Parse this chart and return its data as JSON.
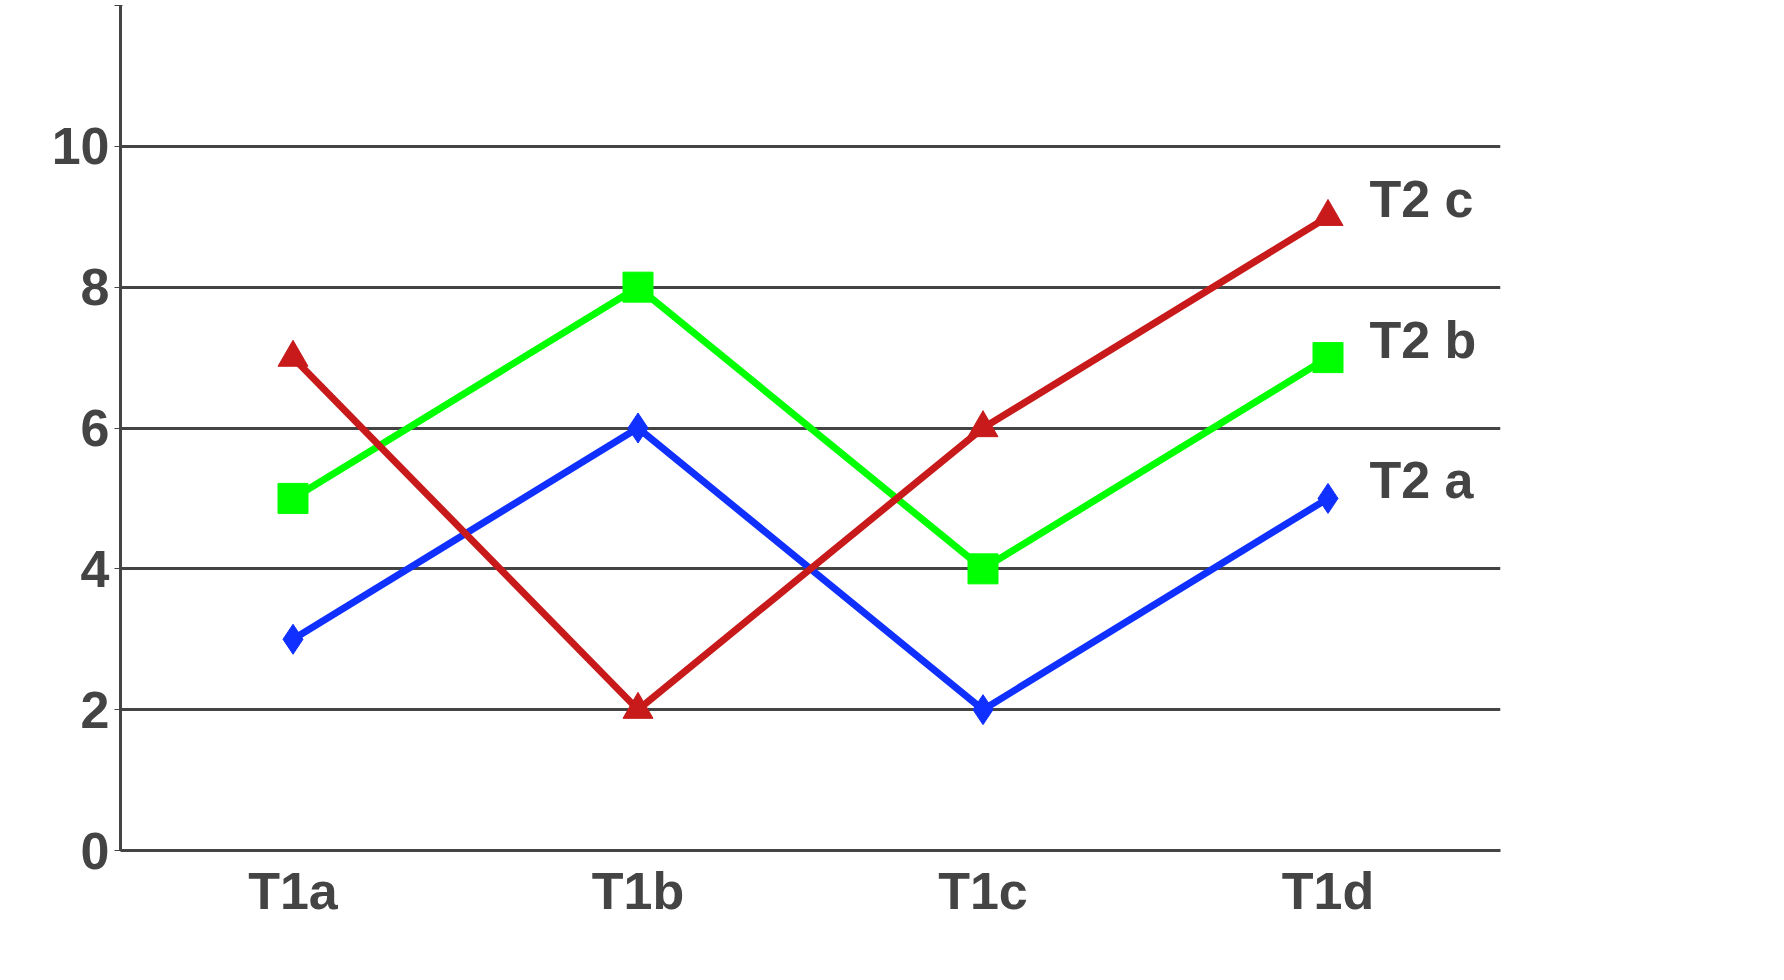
{
  "chart_data": {
    "type": "line",
    "categories": [
      "T1a",
      "T1b",
      "T1c",
      "T1d"
    ],
    "series": [
      {
        "name": "T2 a",
        "color": "#1030ff",
        "values": [
          3,
          6,
          2,
          5
        ],
        "marker": "diamond"
      },
      {
        "name": "T2 b",
        "color": "#00ff00",
        "values": [
          5,
          8,
          4,
          7
        ],
        "marker": "square"
      },
      {
        "name": "T2 c",
        "color": "#c81a1a",
        "values": [
          7,
          2,
          6,
          9
        ],
        "marker": "triangle"
      }
    ],
    "ylim": [
      0,
      12
    ],
    "yticks": [
      0,
      2,
      4,
      6,
      8,
      10,
      {
        "value": 12,
        "label": null
      }
    ],
    "grid": "y",
    "legend": false,
    "line_style": "solid"
  }
}
